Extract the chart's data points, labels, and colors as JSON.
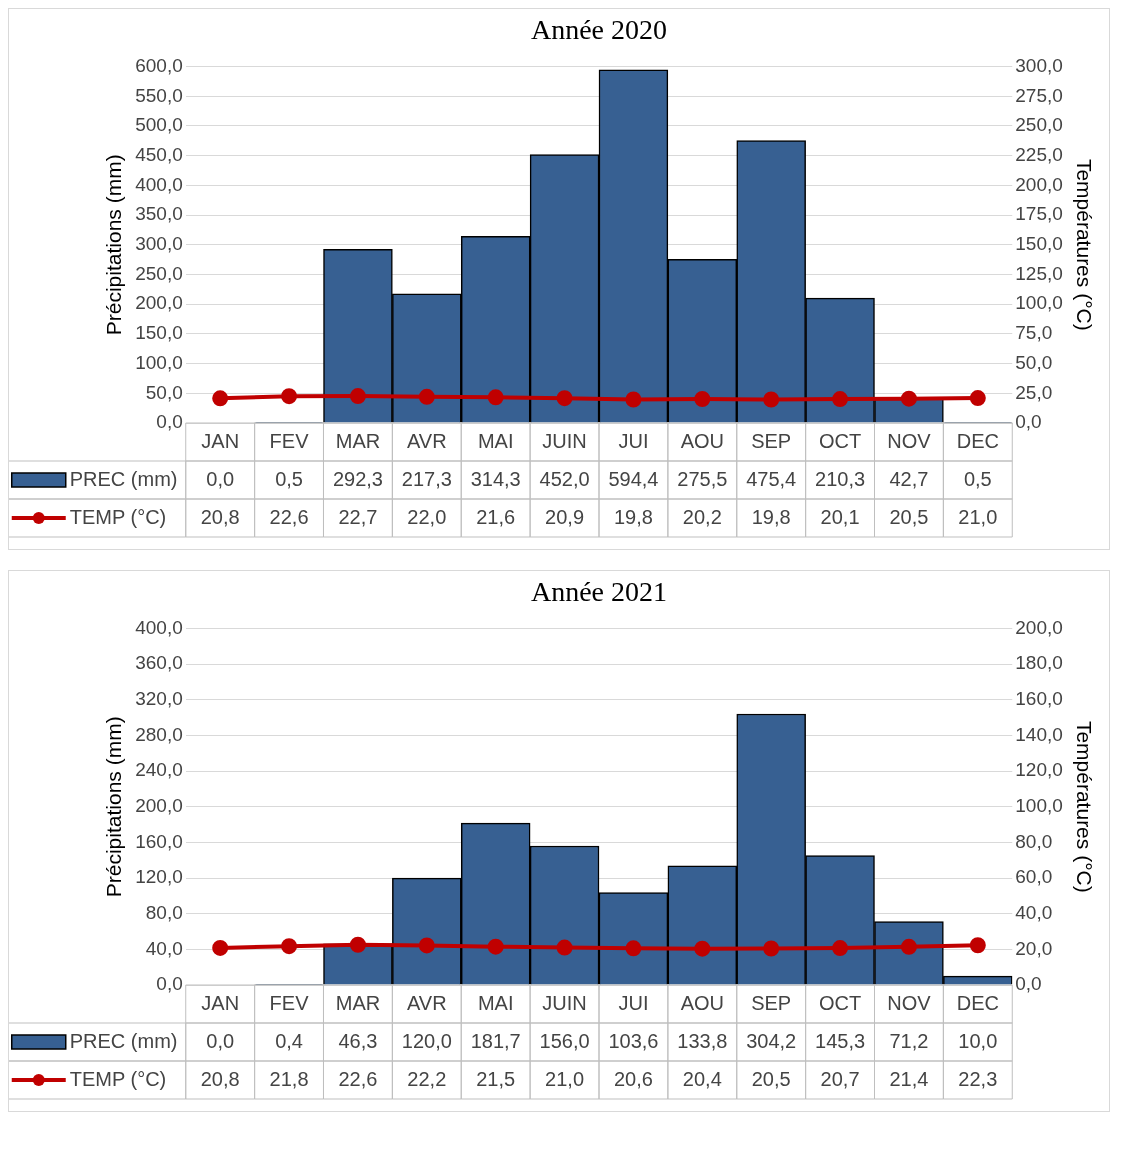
{
  "chart_data": [
    {
      "type": "bar",
      "title": "Année 2020",
      "ylabel": "Précipitations (mm)",
      "y2label": "Températures (°C)",
      "categories": [
        "JAN",
        "FEV",
        "MAR",
        "AVR",
        "MAI",
        "JUIN",
        "JUI",
        "AOU",
        "SEP",
        "OCT",
        "NOV",
        "DEC"
      ],
      "series": [
        {
          "name": "PREC (mm)",
          "color": "#376092",
          "values": [
            0.0,
            0.5,
            292.3,
            217.3,
            314.3,
            452.0,
            594.4,
            275.5,
            475.4,
            210.3,
            42.7,
            0.5
          ],
          "value_labels": [
            "0,0",
            "0,5",
            "292,3",
            "217,3",
            "314,3",
            "452,0",
            "594,4",
            "275,5",
            "475,4",
            "210,3",
            "42,7",
            "0,5"
          ]
        },
        {
          "name": "TEMP (°C)",
          "type": "line",
          "axis": "y2",
          "color": "#c00000",
          "values": [
            20.8,
            22.6,
            22.7,
            22.0,
            21.6,
            20.9,
            19.8,
            20.2,
            19.8,
            20.1,
            20.5,
            21.0
          ],
          "value_labels": [
            "20,8",
            "22,6",
            "22,7",
            "22,0",
            "21,6",
            "20,9",
            "19,8",
            "20,2",
            "19,8",
            "20,1",
            "20,5",
            "21,0"
          ]
        }
      ],
      "ylim": [
        0,
        600
      ],
      "yticks": [
        {
          "value": 0,
          "label": "0,0"
        },
        {
          "value": 50,
          "label": "50,0"
        },
        {
          "value": 100,
          "label": "100,0"
        },
        {
          "value": 150,
          "label": "150,0"
        },
        {
          "value": 200,
          "label": "200,0"
        },
        {
          "value": 250,
          "label": "250,0"
        },
        {
          "value": 300,
          "label": "300,0"
        },
        {
          "value": 350,
          "label": "350,0"
        },
        {
          "value": 400,
          "label": "400,0"
        },
        {
          "value": 450,
          "label": "450,0"
        },
        {
          "value": 500,
          "label": "500,0"
        },
        {
          "value": 550,
          "label": "550,0"
        },
        {
          "value": 600,
          "label": "600,0"
        }
      ],
      "y2lim": [
        0,
        300
      ],
      "y2ticks": [
        {
          "value": 0,
          "label": "0,0"
        },
        {
          "value": 25,
          "label": "25,0"
        },
        {
          "value": 50,
          "label": "50,0"
        },
        {
          "value": 75,
          "label": "75,0"
        },
        {
          "value": 100,
          "label": "100,0"
        },
        {
          "value": 125,
          "label": "125,0"
        },
        {
          "value": 150,
          "label": "150,0"
        },
        {
          "value": 175,
          "label": "175,0"
        },
        {
          "value": 200,
          "label": "200,0"
        },
        {
          "value": 225,
          "label": "225,0"
        },
        {
          "value": 250,
          "label": "250,0"
        },
        {
          "value": 275,
          "label": "275,0"
        },
        {
          "value": 300,
          "label": "300,0"
        }
      ],
      "grid": "y",
      "legend": "bottom",
      "marker": "circle"
    },
    {
      "type": "bar",
      "title": "Année 2021",
      "ylabel": "Précipitations (mm)",
      "y2label": "Températures (°C)",
      "categories": [
        "JAN",
        "FEV",
        "MAR",
        "AVR",
        "MAI",
        "JUIN",
        "JUI",
        "AOU",
        "SEP",
        "OCT",
        "NOV",
        "DEC"
      ],
      "series": [
        {
          "name": "PREC (mm)",
          "color": "#376092",
          "values": [
            0.0,
            0.4,
            46.3,
            120.0,
            181.7,
            156.0,
            103.6,
            133.8,
            304.2,
            145.3,
            71.2,
            10.0
          ],
          "value_labels": [
            "0,0",
            "0,4",
            "46,3",
            "120,0",
            "181,7",
            "156,0",
            "103,6",
            "133,8",
            "304,2",
            "145,3",
            "71,2",
            "10,0"
          ]
        },
        {
          "name": "TEMP (°C)",
          "type": "line",
          "axis": "y2",
          "color": "#c00000",
          "values": [
            20.8,
            21.8,
            22.6,
            22.2,
            21.5,
            21.0,
            20.6,
            20.4,
            20.5,
            20.7,
            21.4,
            22.3
          ],
          "value_labels": [
            "20,8",
            "21,8",
            "22,6",
            "22,2",
            "21,5",
            "21,0",
            "20,6",
            "20,4",
            "20,5",
            "20,7",
            "21,4",
            "22,3"
          ]
        }
      ],
      "ylim": [
        0,
        400
      ],
      "yticks": [
        {
          "value": 0,
          "label": "0,0"
        },
        {
          "value": 40,
          "label": "40,0"
        },
        {
          "value": 80,
          "label": "80,0"
        },
        {
          "value": 120,
          "label": "120,0"
        },
        {
          "value": 160,
          "label": "160,0"
        },
        {
          "value": 200,
          "label": "200,0"
        },
        {
          "value": 240,
          "label": "240,0"
        },
        {
          "value": 280,
          "label": "280,0"
        },
        {
          "value": 320,
          "label": "320,0"
        },
        {
          "value": 360,
          "label": "360,0"
        },
        {
          "value": 400,
          "label": "400,0"
        }
      ],
      "y2lim": [
        0,
        200
      ],
      "y2ticks": [
        {
          "value": 0,
          "label": "0,0"
        },
        {
          "value": 20,
          "label": "20,0"
        },
        {
          "value": 40,
          "label": "40,0"
        },
        {
          "value": 60,
          "label": "60,0"
        },
        {
          "value": 80,
          "label": "80,0"
        },
        {
          "value": 100,
          "label": "100,0"
        },
        {
          "value": 120,
          "label": "120,0"
        },
        {
          "value": 140,
          "label": "140,0"
        },
        {
          "value": 160,
          "label": "160,0"
        },
        {
          "value": 180,
          "label": "180,0"
        },
        {
          "value": 200,
          "label": "200,0"
        }
      ],
      "grid": "y",
      "legend": "bottom",
      "marker": "circle"
    }
  ]
}
